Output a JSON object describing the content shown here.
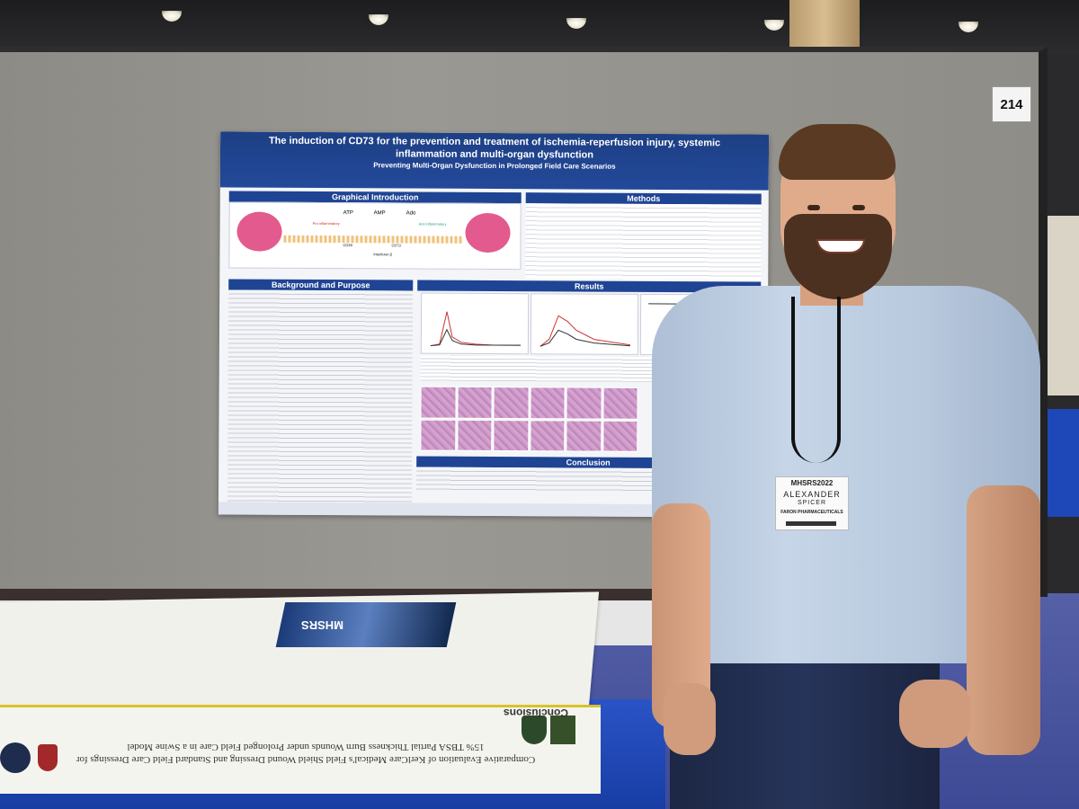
{
  "booth": {
    "number": "214"
  },
  "poster": {
    "title": "The induction of CD73 for the prevention and treatment of ischemia-reperfusion injury, systemic inflammation and multi-organ dysfunction",
    "subtitle": "Preventing Multi-Organ Dysfunction in Prolonged Field Care Scenarios",
    "sections": {
      "graphical_intro": "Graphical Introduction",
      "methods": "Methods",
      "background": "Background and Purpose",
      "results": "Results",
      "conclusion": "Conclusion"
    },
    "diagram_labels": [
      "ATP",
      "AMP",
      "Ado",
      "Pro inflammatory",
      "Anti inflammatory",
      "CD39",
      "CD73",
      "Interferon β"
    ]
  },
  "badge": {
    "conference": "MHSRS2022",
    "first_name": "ALEXANDER",
    "last_name": "SPICER",
    "organization": "FARON PHARMACEUTICALS"
  },
  "table": {
    "brochure_text": "MHSRS",
    "banner_heading": "Comparative Evaluation of KerlCare Medical's Field Shield Wound Dressing and Standard Field Care Dressings for 15% TBSA Partial Thickness Burn Wounds under Prolonged Field Care in a Swine Model",
    "banner_conclusions": "Conclusions"
  }
}
